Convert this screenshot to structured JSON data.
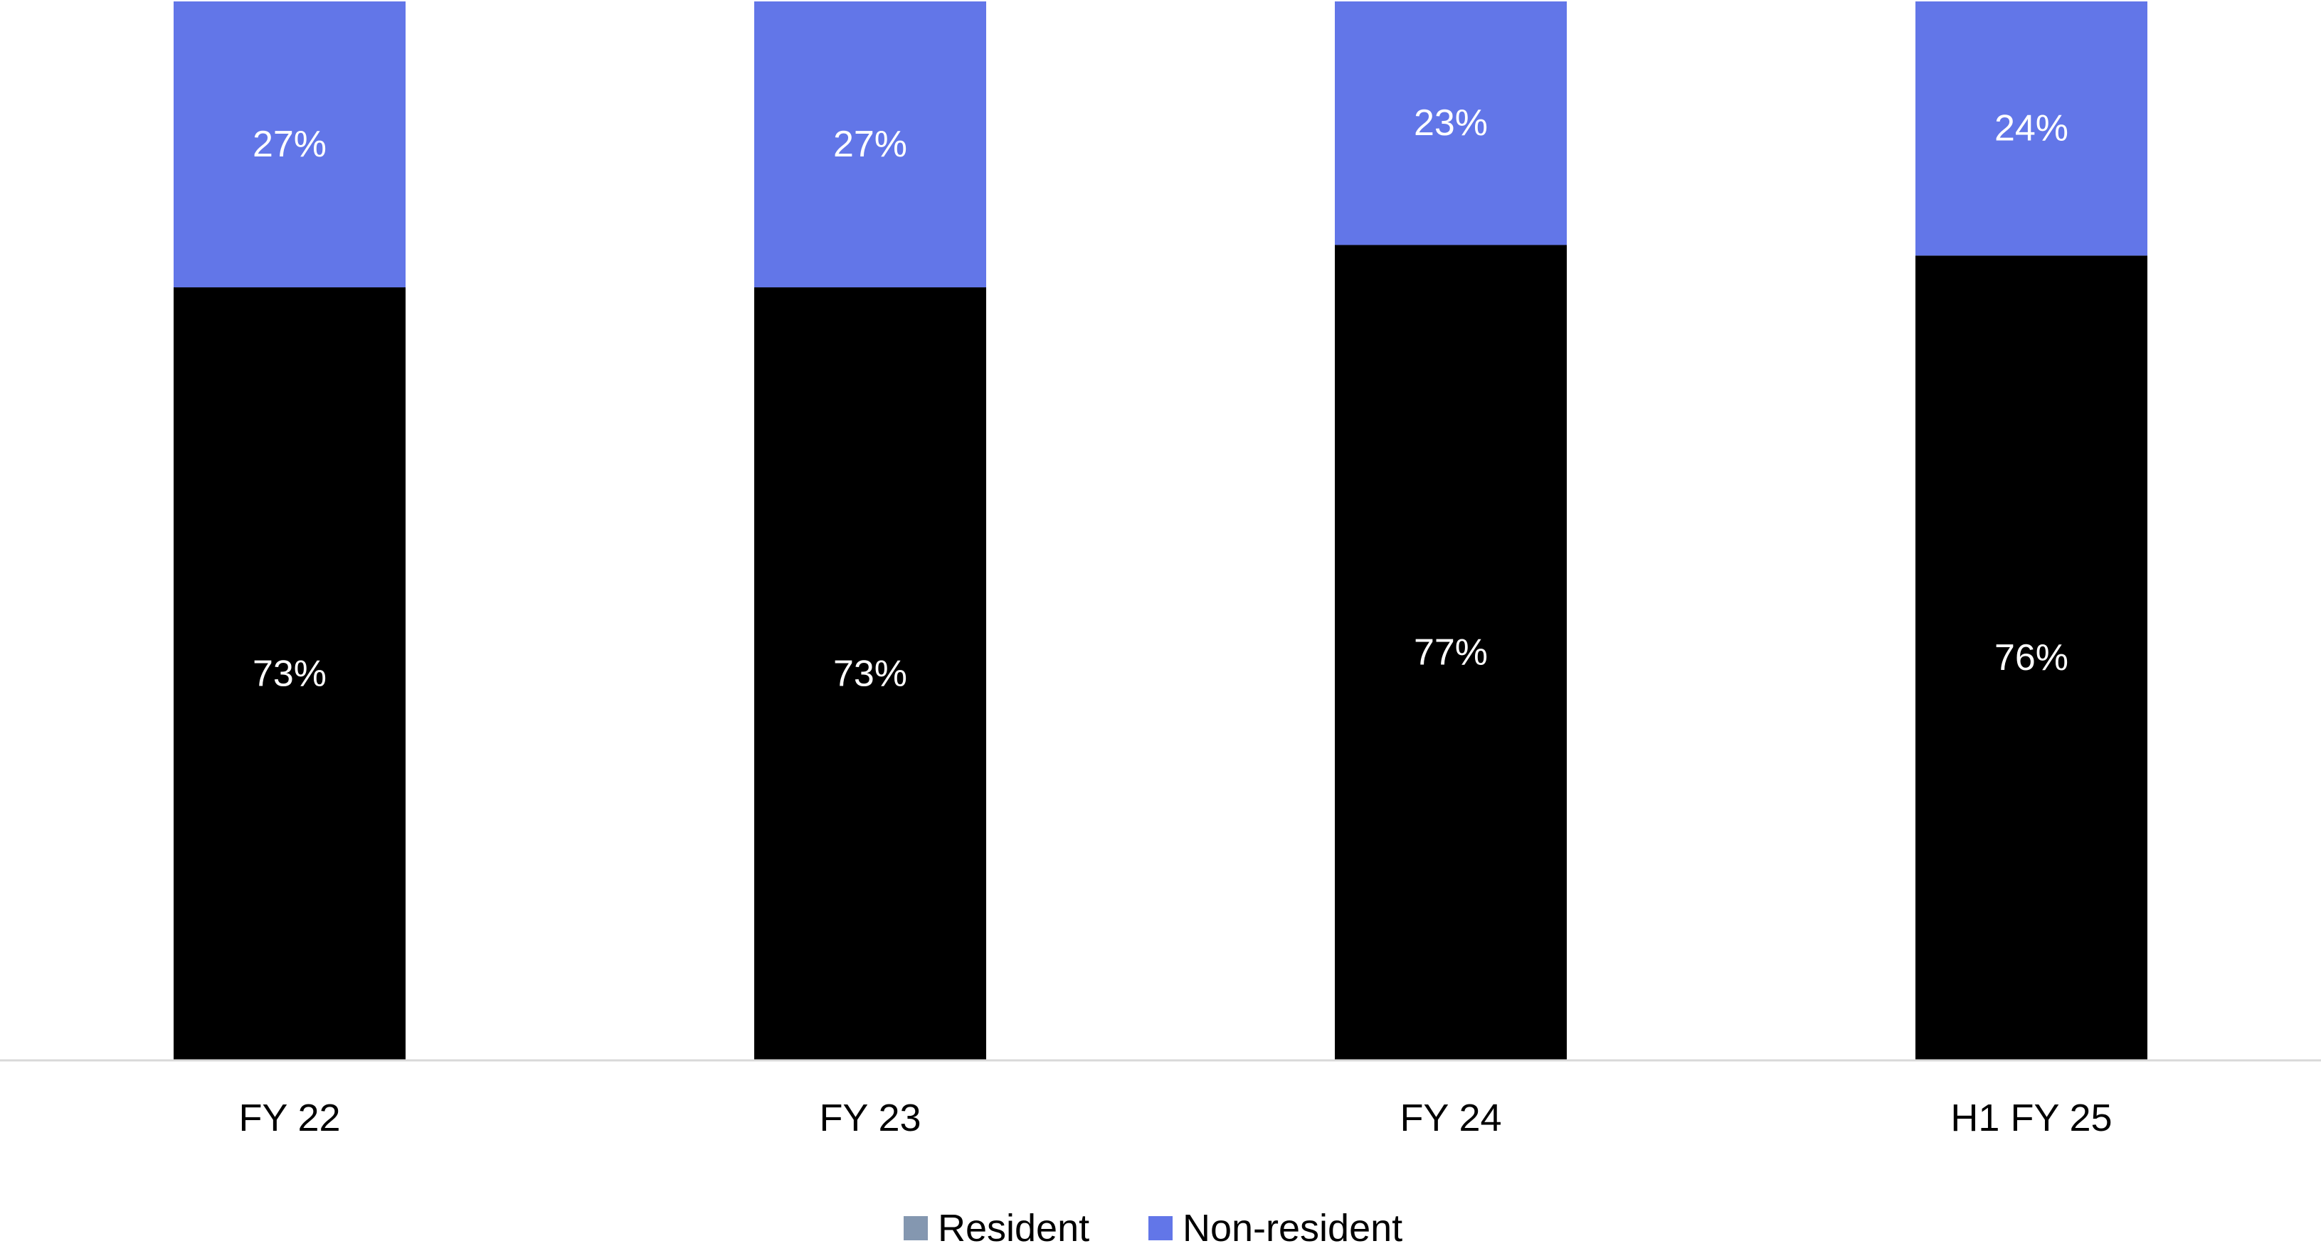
{
  "chart_data": {
    "type": "bar",
    "stacked": true,
    "categories": [
      "FY 22",
      "FY 23",
      "FY 24",
      "H1 FY 25"
    ],
    "series": [
      {
        "name": "Resident",
        "values": [
          73,
          73,
          77,
          76
        ],
        "labels": [
          "73%",
          "73%",
          "77%",
          "76%"
        ],
        "color": "#000000",
        "legend_color": "#8497B0"
      },
      {
        "name": "Non-resident",
        "values": [
          27,
          27,
          23,
          24
        ],
        "labels": [
          "27%",
          "27%",
          "23%",
          "24%"
        ],
        "color": "#6276E8",
        "legend_color": "#6276E8"
      }
    ],
    "title": "",
    "xlabel": "",
    "ylabel": "",
    "ylim": [
      0,
      100
    ],
    "grid": false,
    "legend_position": "bottom",
    "axis_line_color": "#D9D9D9",
    "label_color": "#FFFFFF",
    "tick_label_color": "#000000"
  }
}
